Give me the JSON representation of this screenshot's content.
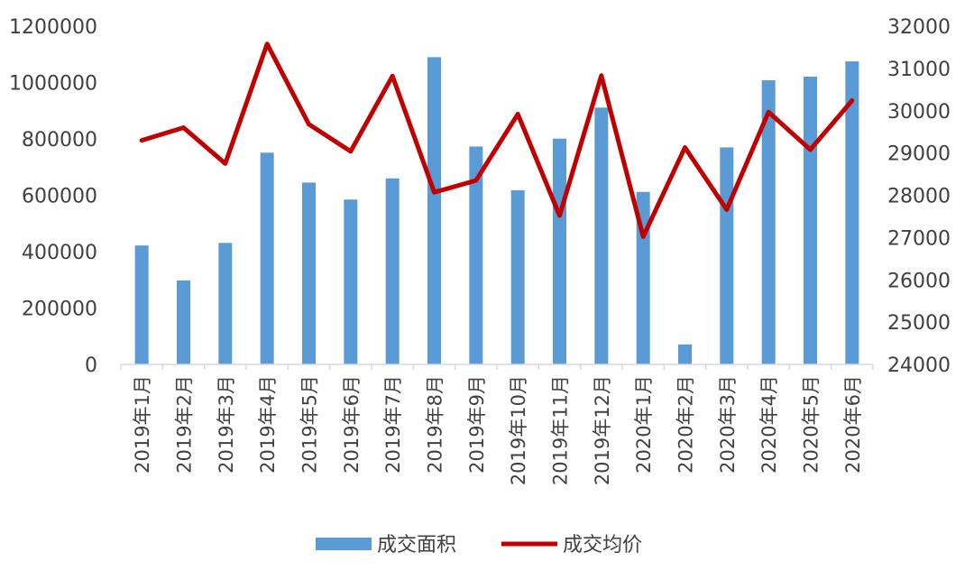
{
  "chart_data": {
    "type": "bar",
    "categories": [
      "2019年1月",
      "2019年2月",
      "2019年3月",
      "2019年4月",
      "2019年5月",
      "2019年6月",
      "2019年7月",
      "2019年8月",
      "2019年9月",
      "2019年10月",
      "2019年11月",
      "2019年12月",
      "2020年1月",
      "2020年2月",
      "2020年3月",
      "2020年4月",
      "2020年5月",
      "2020年6月"
    ],
    "series": [
      {
        "name": "成交面积",
        "type": "bar",
        "axis": "left",
        "color": "#5B9BD5",
        "values": [
          422000,
          298000,
          431000,
          751000,
          645000,
          585000,
          660000,
          1090000,
          773000,
          618000,
          801000,
          911000,
          612000,
          71000,
          770000,
          1008000,
          1021000,
          1075000
        ]
      },
      {
        "name": "成交均价",
        "type": "line",
        "axis": "right",
        "color": "#C00000",
        "values": [
          29300,
          29600,
          28750,
          31580,
          29680,
          29040,
          30820,
          28070,
          28350,
          29920,
          27520,
          30830,
          27020,
          29130,
          27660,
          29970,
          29080,
          30240
        ]
      }
    ],
    "y_left": {
      "min": 0,
      "max": 1200000,
      "ticks": [
        "0",
        "200000",
        "400000",
        "600000",
        "800000",
        "1000000",
        "1200000"
      ]
    },
    "y_right": {
      "min": 24000,
      "max": 32000,
      "ticks": [
        "24000",
        "25000",
        "26000",
        "27000",
        "28000",
        "29000",
        "30000",
        "31000",
        "32000"
      ]
    },
    "title": "",
    "xlabel": "",
    "ylabel": "",
    "grid": false,
    "legend_position": "bottom"
  }
}
